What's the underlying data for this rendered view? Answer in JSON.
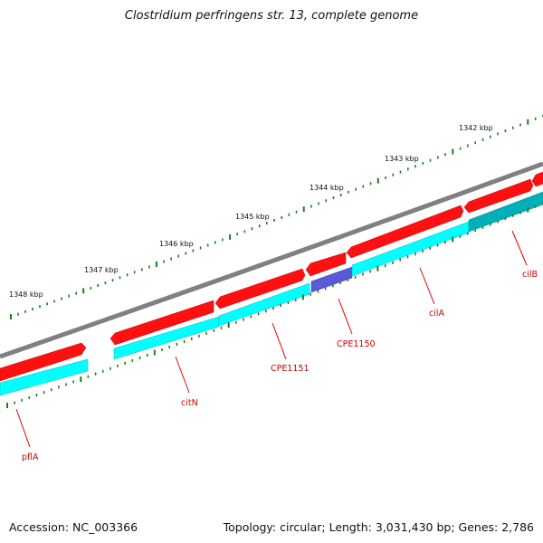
{
  "title": "Clostridium perfringens str. 13, complete genome",
  "footer": {
    "accession": "Accession: NC_003366",
    "summary": "Topology: circular; Length: 3,031,430 bp; Genes: 2,786"
  },
  "colors": {
    "backbone": "#808080",
    "forward_gene": "#ff1010",
    "reverse_gene": "#00ffff",
    "reverse_gene_dark": "#00a8b0",
    "highlight_gene": "#1010c0",
    "tick": "#1a7f1a",
    "label_line": "#e00000"
  },
  "ruler": {
    "labels": [
      "1342 kbp",
      "1343 kbp",
      "1344 kbp",
      "1345 kbp",
      "1346 kbp",
      "1347 kbp",
      "1348 kbp"
    ]
  },
  "genes": [
    {
      "name": "pflA",
      "strand": "forward"
    },
    {
      "name": "citN",
      "strand": "reverse"
    },
    {
      "name": "CPE1151",
      "strand": "reverse"
    },
    {
      "name": "CPE1150",
      "strand": "reverse"
    },
    {
      "name": "cilA",
      "strand": "reverse"
    },
    {
      "name": "cilB",
      "strand": "reverse"
    }
  ]
}
